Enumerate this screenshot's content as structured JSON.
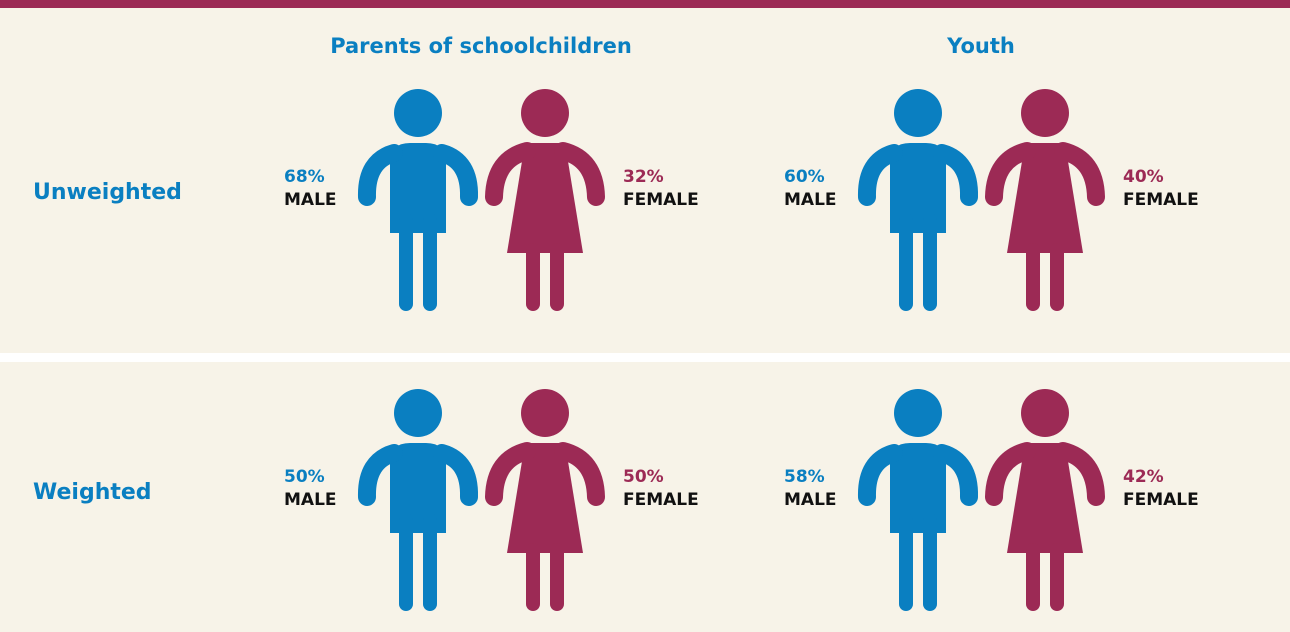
{
  "columns": [
    "Parents of schoolchildren",
    "Youth"
  ],
  "rows": [
    {
      "label": "Unweighted",
      "cells": [
        {
          "male": "68%",
          "female": "32%"
        },
        {
          "male": "60%",
          "female": "40%"
        }
      ]
    },
    {
      "label": "Weighted",
      "cells": [
        {
          "male": "50%",
          "female": "50%"
        },
        {
          "male": "58%",
          "female": "42%"
        }
      ]
    }
  ],
  "male_label": "MALE",
  "female_label": "FEMALE"
}
